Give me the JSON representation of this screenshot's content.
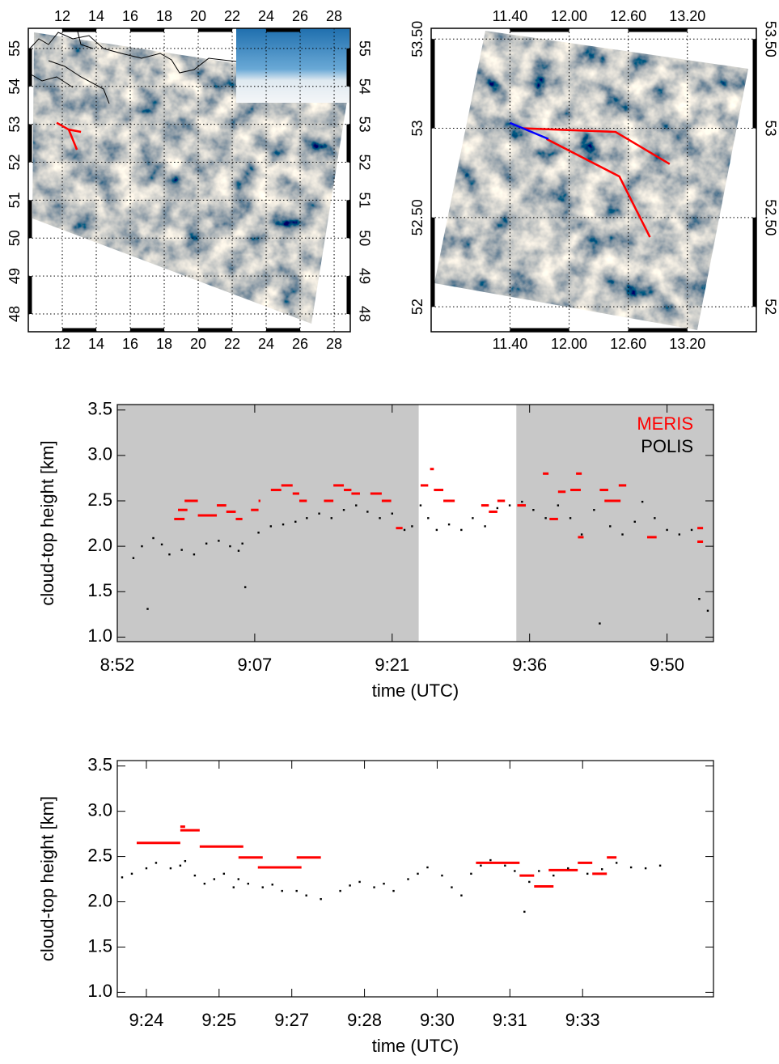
{
  "chart_data": [
    {
      "type": "map",
      "xlim": [
        10,
        28.95
      ],
      "ylim": [
        47.53,
        55.53
      ],
      "xticks": [
        12,
        14,
        16,
        18,
        20,
        22,
        24,
        26,
        28
      ],
      "yticks": [
        48,
        49,
        50,
        51,
        52,
        53,
        54,
        55
      ],
      "grid": true,
      "tracks": [
        {
          "color": "#ff0000",
          "lon": [
            11.67,
            12.38,
            13.1
          ],
          "lat": [
            53.04,
            52.86,
            52.8
          ]
        },
        {
          "color": "#ff0000",
          "lon": [
            12.38,
            12.86
          ],
          "lat": [
            52.86,
            52.33
          ]
        }
      ]
    },
    {
      "type": "map",
      "xlim": [
        10.6,
        13.9
      ],
      "ylim": [
        51.86,
        53.56
      ],
      "xticks": [
        {
          "value": 11.4,
          "label": "11.40"
        },
        {
          "value": 12,
          "label": "12.00"
        },
        {
          "value": 12.6,
          "label": "12.60"
        },
        {
          "value": 13.2,
          "label": "13.20"
        }
      ],
      "yticks": [
        52,
        {
          "value": 52.5,
          "label": "52.50"
        },
        53,
        {
          "value": 53.5,
          "label": "53.50"
        }
      ],
      "grid": true,
      "tracks": [
        {
          "color": "#ff0000",
          "lon": [
            11.52,
            12.47,
            13.02
          ],
          "lat": [
            53.0,
            52.98,
            52.8
          ]
        },
        {
          "color": "#ff0000",
          "lon": [
            11.77,
            12.51,
            12.82
          ],
          "lat": [
            52.94,
            52.73,
            52.39
          ]
        },
        {
          "color": "#0000ff",
          "lon": [
            11.4,
            11.79
          ],
          "lat": [
            53.03,
            52.94
          ]
        }
      ]
    },
    {
      "type": "scatter",
      "x_label": "time (UTC)",
      "y_label": "cloud-top height [km]",
      "xlim": [
        532,
        594.9
      ],
      "ylim": [
        0.95,
        3.56
      ],
      "xticks": [
        {
          "value": 532,
          "label": "8:52"
        },
        {
          "value": 546.5,
          "label": "9:07"
        },
        {
          "value": 561,
          "label": "9:21"
        },
        {
          "value": 575.5,
          "label": "9:36"
        },
        {
          "value": 590,
          "label": "9:50"
        }
      ],
      "yticks": [
        {
          "value": 1,
          "label": "1.0"
        },
        1.5,
        {
          "value": 2,
          "label": "2.0"
        },
        2.5,
        {
          "value": 3,
          "label": "3.0"
        },
        3.5
      ],
      "legend": "upper right",
      "shaded_color": "#c8c8c8",
      "shaded_spans": [
        [
          532,
          563.8
        ],
        [
          574.1,
          594.9
        ]
      ],
      "series": [
        {
          "name": "MERIS",
          "color": "#ff0000",
          "x_start": [
            538.0,
            538.4,
            539.1,
            540.5,
            542.5,
            543.5,
            544.5,
            546.1,
            546.9,
            548.2,
            549.3,
            550.5,
            551.2,
            553.8,
            554.8,
            555.9,
            556.7,
            558.7,
            559.9,
            561.4,
            564.0,
            565.0,
            565.4,
            566.4,
            570.4,
            571.2,
            572.1,
            574.2,
            576.9,
            577.6,
            578.5,
            579.8,
            580.4,
            580.6,
            582.9,
            583.4,
            584.9,
            587.9,
            593.2,
            593.2
          ],
          "x_end": [
            539.1,
            539.4,
            540.5,
            542.5,
            543.5,
            544.5,
            545.2,
            546.9,
            547.1,
            549.3,
            550.5,
            551.2,
            552.0,
            554.8,
            555.9,
            556.7,
            557.6,
            559.9,
            560.9,
            562.1,
            564.8,
            565.4,
            566.4,
            567.6,
            571.2,
            572.1,
            572.9,
            575.1,
            577.5,
            578.5,
            579.3,
            580.9,
            581.0,
            581.2,
            583.8,
            585.1,
            585.7,
            588.9,
            593.8,
            593.8
          ],
          "values": [
            2.3,
            2.4,
            2.5,
            2.34,
            2.45,
            2.38,
            2.3,
            2.4,
            2.5,
            2.62,
            2.67,
            2.58,
            2.5,
            2.5,
            2.67,
            2.62,
            2.58,
            2.58,
            2.5,
            2.2,
            2.67,
            2.85,
            2.62,
            2.5,
            2.45,
            2.38,
            2.5,
            2.45,
            2.8,
            2.3,
            2.6,
            2.62,
            2.8,
            2.1,
            2.62,
            2.5,
            2.67,
            2.1,
            2.2,
            2.05
          ]
        },
        {
          "name": "POLIS",
          "color": "#000000",
          "x": [
            533.7,
            534.6,
            535.2,
            535.8,
            536.7,
            537.5,
            538.8,
            540.1,
            541.4,
            542.7,
            543.9,
            544.8,
            545.2,
            545.5,
            546.9,
            548.2,
            549.5,
            550.8,
            552.0,
            553.3,
            554.6,
            555.9,
            557.2,
            558.4,
            559.7,
            561.0,
            562.3,
            563.1,
            564.0,
            564.8,
            565.7,
            567.0,
            568.3,
            569.5,
            570.8,
            572.1,
            573.4,
            574.7,
            575.9,
            577.2,
            578.5,
            579.8,
            581.0,
            582.3,
            582.9,
            584.0,
            585.3,
            586.6,
            587.4,
            588.7,
            590.0,
            591.3,
            592.6,
            593.4,
            594.3
          ],
          "values": [
            1.87,
            2.0,
            1.31,
            2.09,
            2.02,
            1.91,
            1.96,
            1.91,
            2.03,
            2.06,
            2.0,
            1.95,
            2.03,
            1.55,
            2.15,
            2.22,
            2.24,
            2.27,
            2.31,
            2.36,
            2.31,
            2.4,
            2.45,
            2.38,
            2.31,
            2.36,
            2.18,
            2.22,
            2.45,
            2.31,
            2.18,
            2.24,
            2.18,
            2.31,
            2.22,
            2.42,
            2.45,
            2.49,
            2.4,
            2.31,
            2.45,
            2.31,
            2.13,
            2.4,
            1.15,
            2.22,
            2.13,
            2.27,
            2.49,
            2.31,
            2.18,
            2.13,
            2.18,
            1.42,
            1.29
          ]
        }
      ]
    },
    {
      "type": "scatter",
      "x_label": "time (UTC)",
      "y_label": "cloud-top height [km]",
      "xlim": [
        563.4,
        575.7
      ],
      "ylim": [
        0.95,
        3.56
      ],
      "xticks": [
        {
          "value": 564,
          "label": "9:24"
        },
        {
          "value": 565.5,
          "label": "9:25"
        },
        {
          "value": 567,
          "label": "9:27"
        },
        {
          "value": 568.5,
          "label": "9:28"
        },
        {
          "value": 570,
          "label": "9:30"
        },
        {
          "value": 571.5,
          "label": "9:31"
        },
        {
          "value": 573,
          "label": "9:33"
        }
      ],
      "yticks": [
        {
          "value": 1,
          "label": "1.0"
        },
        1.5,
        {
          "value": 2,
          "label": "2.0"
        },
        2.5,
        {
          "value": 3,
          "label": "3.0"
        },
        3.5
      ],
      "series": [
        {
          "name": "MERIS",
          "color": "#ff0000",
          "x_start": [
            563.8,
            564.7,
            564.7,
            565.1,
            565.9,
            566.3,
            567.1,
            570.8,
            571.7,
            572.0,
            572.3,
            572.9,
            573.2,
            573.5
          ],
          "x_end": [
            564.7,
            564.8,
            565.1,
            566.0,
            566.4,
            567.2,
            567.6,
            571.7,
            572.0,
            572.4,
            572.9,
            573.2,
            573.5,
            573.7
          ],
          "values": [
            2.65,
            2.83,
            2.79,
            2.61,
            2.49,
            2.38,
            2.49,
            2.43,
            2.29,
            2.17,
            2.35,
            2.43,
            2.31,
            2.49
          ]
        },
        {
          "name": "POLIS",
          "color": "#000000",
          "x": [
            563.5,
            563.7,
            564.0,
            564.2,
            564.5,
            564.7,
            564.8,
            565.0,
            565.2,
            565.4,
            565.6,
            565.8,
            565.9,
            566.1,
            566.4,
            566.6,
            566.8,
            567.1,
            567.3,
            567.6,
            568.0,
            568.2,
            568.4,
            568.7,
            568.9,
            569.1,
            569.4,
            569.6,
            569.8,
            570.1,
            570.3,
            570.5,
            570.7,
            570.9,
            571.1,
            571.4,
            571.6,
            571.8,
            571.9,
            572.1,
            572.4,
            572.7,
            573.1,
            573.4,
            573.7,
            574.0,
            574.3,
            574.6
          ],
          "values": [
            2.27,
            2.31,
            2.37,
            2.43,
            2.37,
            2.4,
            2.45,
            2.29,
            2.2,
            2.25,
            2.31,
            2.16,
            2.25,
            2.2,
            2.16,
            2.19,
            2.12,
            2.12,
            2.07,
            2.03,
            2.12,
            2.18,
            2.22,
            2.16,
            2.2,
            2.12,
            2.25,
            2.31,
            2.38,
            2.29,
            2.16,
            2.07,
            2.31,
            2.4,
            2.46,
            2.4,
            2.34,
            1.89,
            2.22,
            2.34,
            2.29,
            2.37,
            2.31,
            2.36,
            2.43,
            2.38,
            2.37,
            2.4
          ]
        }
      ]
    }
  ]
}
